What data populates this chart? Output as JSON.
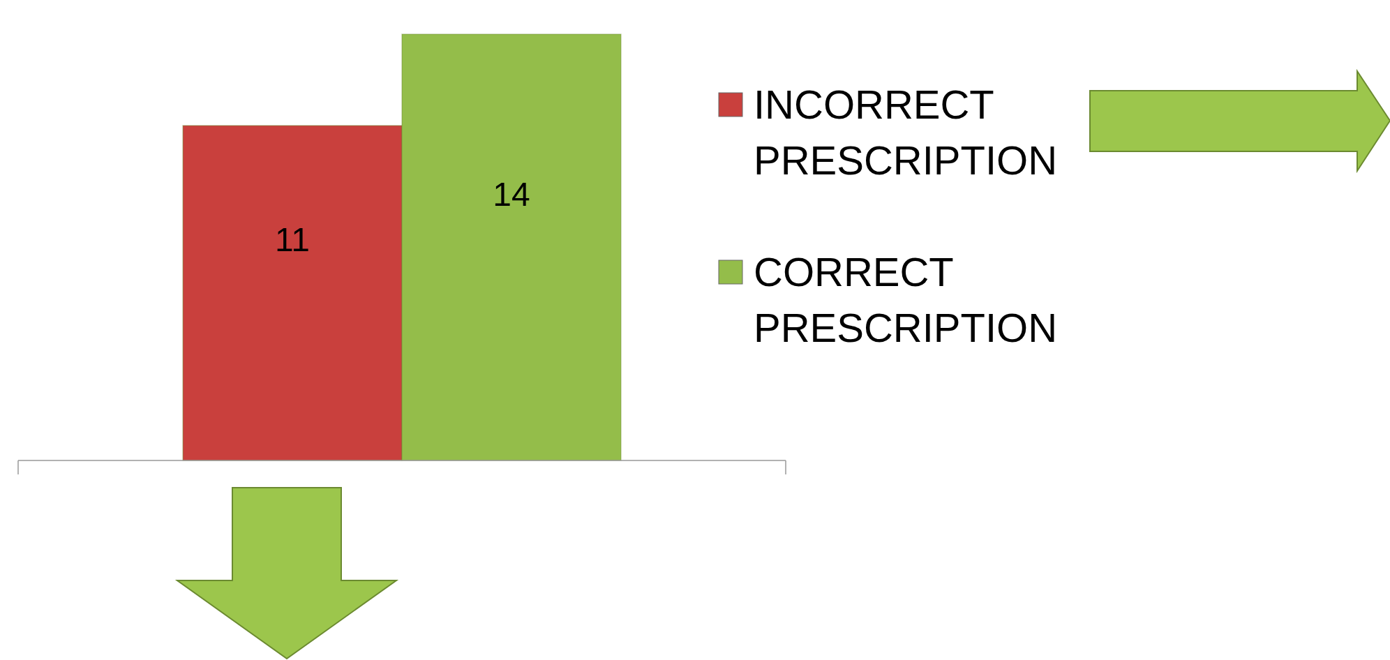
{
  "chart_data": {
    "type": "bar",
    "categories": [
      null
    ],
    "series": [
      {
        "name": "INCORRECT PRESCRIPTION",
        "color": "#c9403d",
        "values": [
          11
        ]
      },
      {
        "name": "CORRECT PRESCRIPTION",
        "color": "#94bd4a",
        "values": [
          14
        ]
      }
    ],
    "ylim": [
      0,
      14
    ],
    "data_labels": true,
    "legend": "right"
  }
}
